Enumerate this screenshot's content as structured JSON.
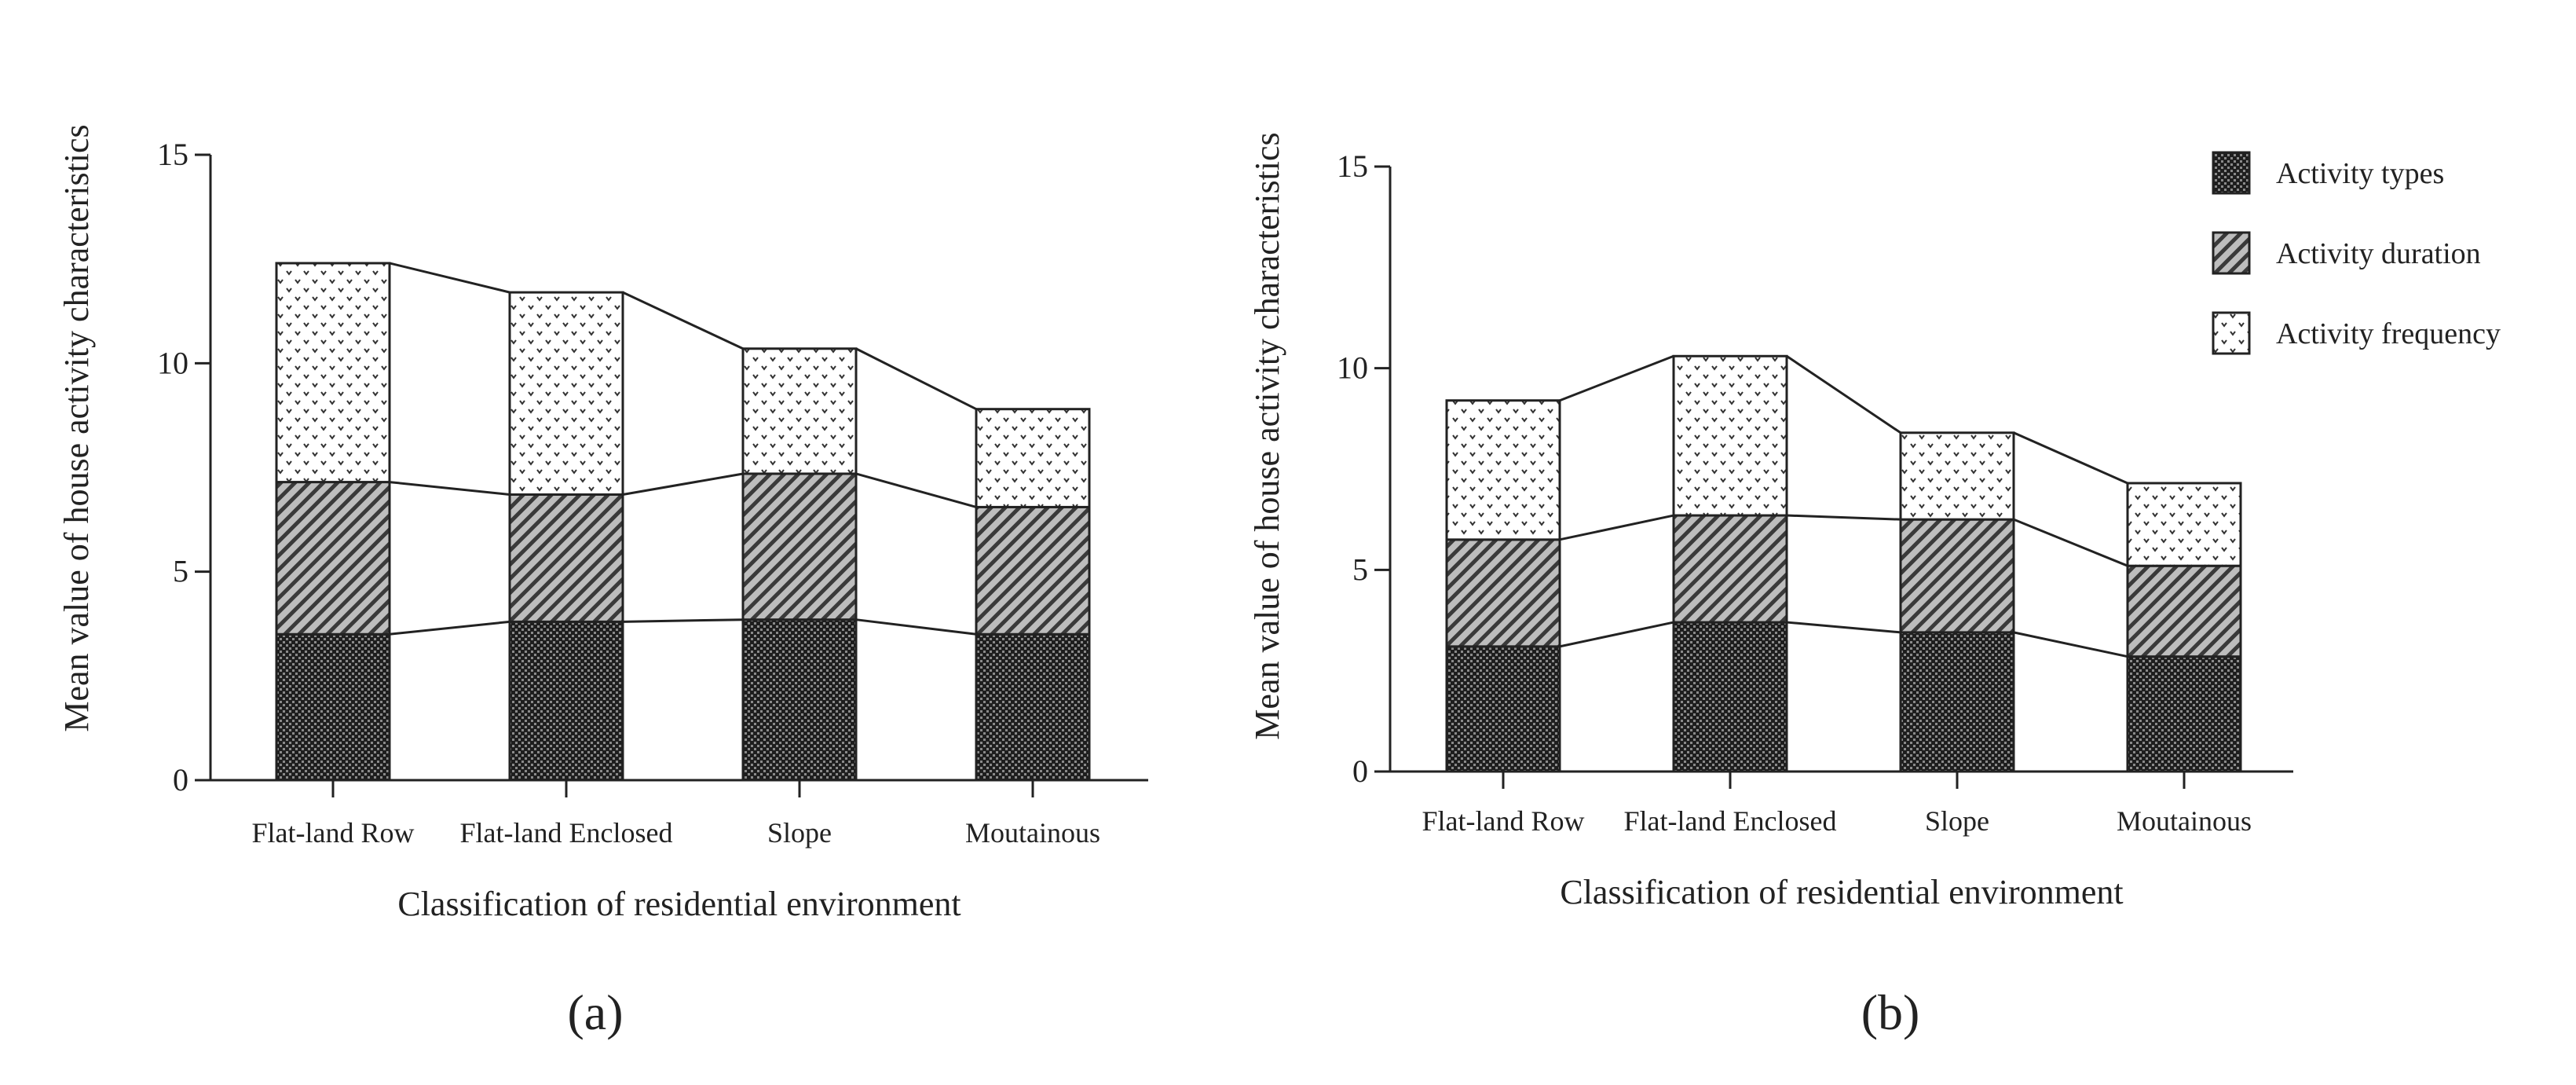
{
  "chart_data": [
    {
      "type": "bar",
      "stacked": true,
      "panel_label": "(a)",
      "categories": [
        "Flat-land Row",
        "Flat-land Enclosed",
        "Slope",
        "Moutainous"
      ],
      "series": [
        {
          "name": "Activity types",
          "values": [
            3.5,
            3.8,
            3.85,
            3.5
          ]
        },
        {
          "name": "Activity duration",
          "values": [
            3.65,
            3.05,
            3.5,
            3.05
          ]
        },
        {
          "name": "Activity frequency",
          "values": [
            5.25,
            4.85,
            3.0,
            2.35
          ]
        }
      ],
      "connector_lines": true,
      "title": "",
      "xlabel": "Classification of residential environment",
      "ylabel": "Mean value of house activity characteristics",
      "ylim": [
        0,
        15
      ],
      "yticks": [
        "0",
        "5",
        "10",
        "15"
      ],
      "grid": false,
      "legend": null
    },
    {
      "type": "bar",
      "stacked": true,
      "panel_label": "(b)",
      "categories": [
        "Flat-land Row",
        "Flat-land Enclosed",
        "Slope",
        "Moutainous"
      ],
      "series": [
        {
          "name": "Activity types",
          "values": [
            3.1,
            3.7,
            3.45,
            2.85
          ]
        },
        {
          "name": "Activity duration",
          "values": [
            2.65,
            2.65,
            2.8,
            2.25
          ]
        },
        {
          "name": "Activity frequency",
          "values": [
            3.45,
            3.95,
            2.15,
            2.05
          ]
        }
      ],
      "connector_lines": true,
      "title": "",
      "xlabel": "Classification of residential environment",
      "ylabel": "Mean value of house activity characteristics",
      "ylim": [
        0,
        15
      ],
      "yticks": [
        "0",
        "5",
        "10",
        "15"
      ],
      "grid": false,
      "legend": "top-right"
    }
  ]
}
